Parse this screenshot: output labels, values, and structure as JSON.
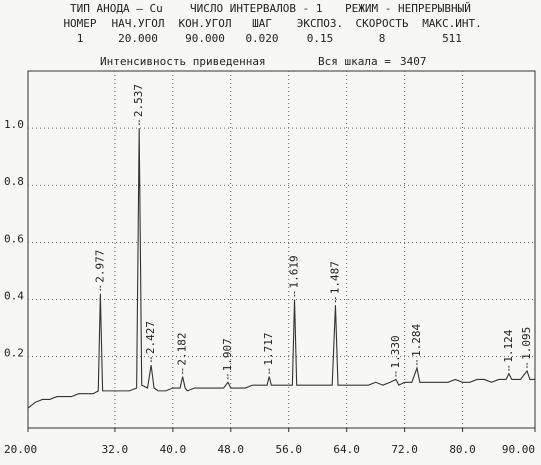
{
  "chart_data": {
    "type": "line",
    "header": [
      "ТИП АНОДА – Cu",
      "ЧИСЛО ИНТЕРВАЛОВ - 1",
      "РЕЖИМ - НЕПРЕРЫВНЫЙ"
    ],
    "columns": [
      "НОМЕР",
      "НАЧ.УГОЛ",
      "КОН.УГОЛ",
      "ШАГ",
      "ЭКСПОЗ.",
      "СКОРОСТЬ",
      "МАКС.ИНТ."
    ],
    "row": [
      "1",
      "20.000",
      "90.000",
      "0.020",
      "0.15",
      "8",
      "511"
    ],
    "subtitle": "Интенсивность приведенная",
    "scale_label": "Вся шкала =",
    "scale_value": 3407,
    "xlim": [
      20,
      90
    ],
    "ylim": [
      -0.05,
      1.2
    ],
    "xticks": [
      {
        "value": 20,
        "label": "20.00"
      },
      {
        "value": 32,
        "label": "32.0"
      },
      {
        "value": 40,
        "label": "40.0"
      },
      {
        "value": 48,
        "label": "48.0"
      },
      {
        "value": 56,
        "label": "56.0"
      },
      {
        "value": 64,
        "label": "64.0"
      },
      {
        "value": 72,
        "label": "72.0"
      },
      {
        "value": 80,
        "label": "80.0"
      },
      {
        "value": 90,
        "label": "90.00"
      }
    ],
    "yticks": [
      0.2,
      0.4,
      0.6,
      0.8,
      {
        "value": 1.0,
        "label": "1.0"
      }
    ],
    "grid": true,
    "color": "#333333",
    "x": [
      20,
      21,
      22,
      23,
      24,
      25,
      26,
      27,
      28,
      29,
      29.7,
      29.99,
      30.3,
      31,
      32,
      33,
      34,
      35,
      35.35,
      35.7,
      36.5,
      37.0,
      37.4,
      38,
      39,
      40,
      41,
      41.35,
      41.7,
      42,
      43,
      44,
      45,
      46,
      47,
      47.6,
      48,
      49,
      50,
      51,
      52,
      53,
      53.3,
      53.6,
      54,
      55,
      56,
      56.5,
      56.8,
      57.1,
      58,
      59,
      60,
      61,
      62,
      62.45,
      62.8,
      63,
      64,
      65,
      66,
      67,
      68,
      69,
      70,
      70.8,
      71.2,
      72,
      73,
      73.7,
      74.1,
      75,
      76,
      77,
      78,
      79,
      80,
      81,
      82,
      83,
      84,
      85,
      86,
      86.4,
      86.8,
      87,
      88,
      88.9,
      89.3,
      90
    ],
    "values": [
      0.02,
      0.04,
      0.05,
      0.05,
      0.06,
      0.06,
      0.06,
      0.07,
      0.07,
      0.07,
      0.08,
      0.42,
      0.08,
      0.08,
      0.08,
      0.08,
      0.08,
      0.09,
      1.0,
      0.1,
      0.09,
      0.17,
      0.09,
      0.08,
      0.08,
      0.09,
      0.09,
      0.13,
      0.09,
      0.08,
      0.09,
      0.09,
      0.09,
      0.09,
      0.09,
      0.11,
      0.09,
      0.09,
      0.09,
      0.1,
      0.1,
      0.1,
      0.13,
      0.1,
      0.1,
      0.1,
      0.1,
      0.1,
      0.4,
      0.1,
      0.1,
      0.1,
      0.1,
      0.1,
      0.1,
      0.38,
      0.1,
      0.1,
      0.1,
      0.1,
      0.1,
      0.1,
      0.11,
      0.1,
      0.11,
      0.12,
      0.1,
      0.11,
      0.11,
      0.16,
      0.11,
      0.11,
      0.11,
      0.11,
      0.11,
      0.12,
      0.11,
      0.11,
      0.12,
      0.12,
      0.11,
      0.12,
      0.12,
      0.14,
      0.12,
      0.12,
      0.12,
      0.15,
      0.12,
      0.12
    ],
    "annotations": [
      {
        "text": "2.977",
        "x": 29.99,
        "y": 0.42
      },
      {
        "text": "2.537",
        "x": 35.35,
        "y": 1.0
      },
      {
        "text": "2.427",
        "x": 37.0,
        "y": 0.17
      },
      {
        "text": "2.182",
        "x": 41.35,
        "y": 0.13
      },
      {
        "text": "1.907",
        "x": 47.6,
        "y": 0.11
      },
      {
        "text": "1.717",
        "x": 53.3,
        "y": 0.13
      },
      {
        "text": "1.619",
        "x": 56.8,
        "y": 0.4
      },
      {
        "text": "1.487",
        "x": 62.45,
        "y": 0.38
      },
      {
        "text": "1.330",
        "x": 70.8,
        "y": 0.12
      },
      {
        "text": "1.284",
        "x": 73.7,
        "y": 0.16
      },
      {
        "text": "1.124",
        "x": 86.4,
        "y": 0.14
      },
      {
        "text": "1.095",
        "x": 88.9,
        "y": 0.15
      }
    ]
  }
}
